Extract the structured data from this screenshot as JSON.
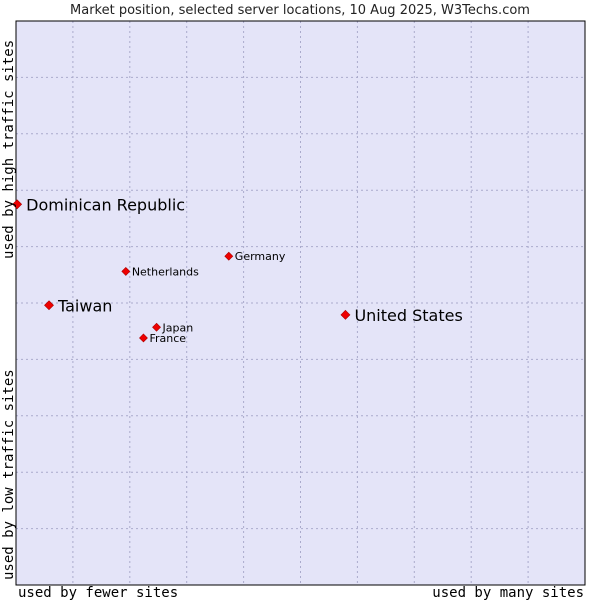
{
  "chart_data": {
    "type": "scatter",
    "title": "Market position, selected server locations, 10 Aug 2025, W3Techs.com",
    "xlabel_left": "used by fewer sites",
    "xlabel_right": "used by many sites",
    "ylabel_top": "used by high traffic sites",
    "ylabel_bottom": "used by low traffic sites",
    "xlim": [
      0,
      100
    ],
    "ylim": [
      0,
      100
    ],
    "grid": true,
    "colors": {
      "plot_background": "#e4e4f8",
      "grid": "#aaaacc",
      "marker": "#ee0000",
      "border": "#000000"
    },
    "points": [
      {
        "name": "Dominican Republic",
        "x": 0.2,
        "y": 67.5,
        "size": "large"
      },
      {
        "name": "Germany",
        "x": 37.4,
        "y": 58.3,
        "size": "small"
      },
      {
        "name": "Netherlands",
        "x": 19.3,
        "y": 55.6,
        "size": "small"
      },
      {
        "name": "Taiwan",
        "x": 5.8,
        "y": 49.6,
        "size": "large"
      },
      {
        "name": "United States",
        "x": 57.9,
        "y": 47.9,
        "size": "large"
      },
      {
        "name": "Japan",
        "x": 24.7,
        "y": 45.7,
        "size": "small"
      },
      {
        "name": "France",
        "x": 22.4,
        "y": 43.8,
        "size": "small"
      }
    ]
  }
}
